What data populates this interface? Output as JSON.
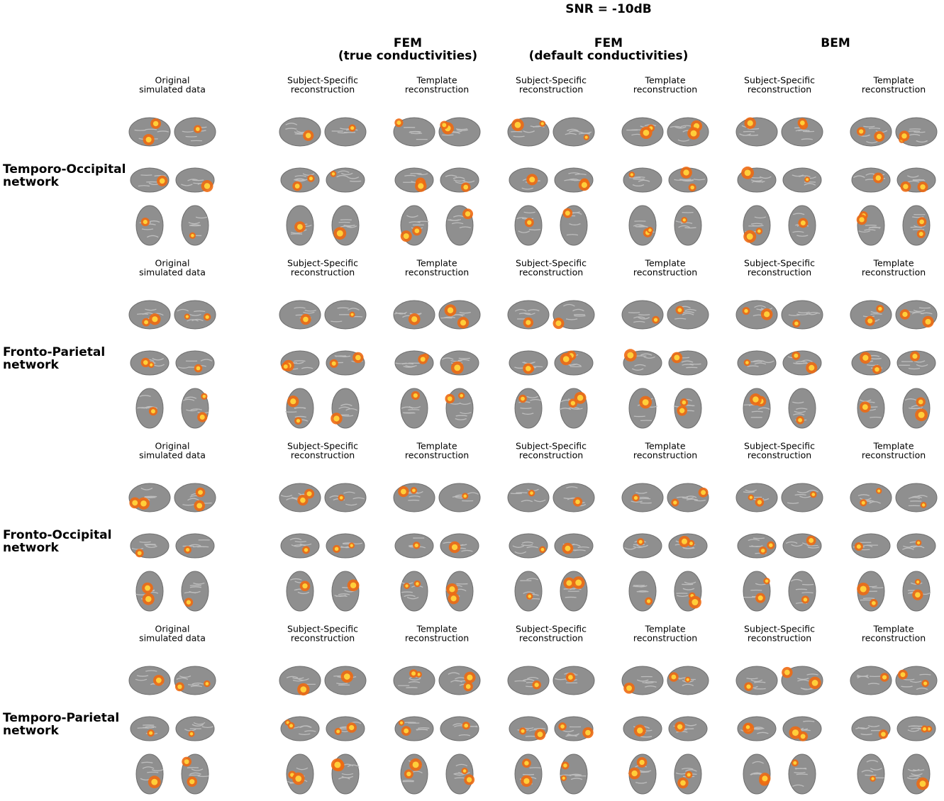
{
  "title": "SNR = -10dB",
  "column_groups": [
    {
      "lines": [
        "FEM",
        "(true conductivities)"
      ]
    },
    {
      "lines": [
        "FEM",
        "(default conductivities)"
      ]
    },
    {
      "lines": [
        "BEM"
      ]
    }
  ],
  "networks": [
    {
      "label": [
        "Temporo-Occipital",
        "network"
      ],
      "columns": [
        [
          "Original",
          "simulated data"
        ],
        [
          "Subject-Specific",
          "reconstruction"
        ],
        [
          "Template",
          "reconstruction"
        ],
        [
          "Subject-Specific",
          "reconstruction"
        ],
        [
          "Template",
          "reconstruction"
        ],
        [
          "Subject-Specific",
          "reconstruction"
        ],
        [
          "Template",
          "reconstruction"
        ]
      ]
    },
    {
      "label": [
        "Fronto-Parietal",
        "network"
      ],
      "columns": [
        [
          "Original",
          "simulated data"
        ],
        [
          "Subject-Specific",
          "reconstruction"
        ],
        [
          "Template",
          "reconstruction"
        ],
        [
          "Subject-Specific",
          "reconstruction"
        ],
        [
          "Template",
          "reconstruction"
        ],
        [
          "Subject-Specific",
          "reconstruction"
        ],
        [
          "Template",
          "reconstruction"
        ]
      ]
    },
    {
      "label": [
        "Fronto-Occipital",
        "network"
      ],
      "columns": [
        [
          "Original",
          "simulated data"
        ],
        [
          "Subject-Specific",
          "reconstruction"
        ],
        [
          "Template",
          "reconstruction"
        ],
        [
          "Subject-Specific",
          "reconstruction"
        ],
        [
          "Template",
          "reconstruction"
        ],
        [
          "Subject-Specific",
          "reconstruction"
        ],
        [
          "Template",
          "reconstruction"
        ]
      ]
    },
    {
      "label": [
        "Temporo-Parietal",
        "network"
      ],
      "columns": [
        [
          "Original",
          "simulated data"
        ],
        [
          "Subject-Specific",
          "reconstruction"
        ],
        [
          "Template",
          "reconstruction"
        ],
        [
          "Subject-Specific",
          "reconstruction"
        ],
        [
          "Template",
          "reconstruction"
        ],
        [
          "Subject-Specific",
          "reconstruction"
        ],
        [
          "Template",
          "reconstruction"
        ]
      ]
    }
  ]
}
